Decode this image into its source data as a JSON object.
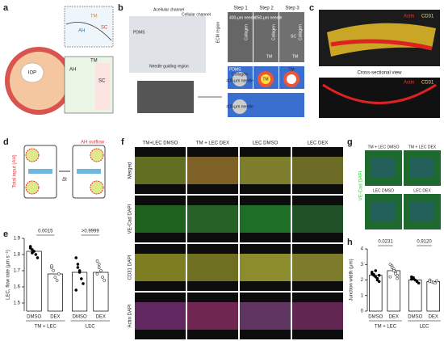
{
  "panels": {
    "a": {
      "letter": "a",
      "labels": [
        "IOP",
        "TM",
        "AH",
        "SC",
        "TM",
        "AH",
        "SC"
      ]
    },
    "b": {
      "letter": "b",
      "labels": [
        "Acellular channel",
        "Cellular channel",
        "PDMS",
        "Needle guiding region",
        "ECM region"
      ],
      "steps": [
        "Step 1",
        "Step 2",
        "Step 3"
      ],
      "step_texts": [
        "400-μm needle",
        "Collagen",
        "250-μm needle",
        "Collagen",
        "TM",
        "SC",
        "Collagen",
        "TM"
      ],
      "diagram_texts": [
        "PDMS",
        "Collagen",
        "400-μm needle",
        "TM",
        "TM",
        "400-μm needle"
      ]
    },
    "c": {
      "letter": "c",
      "labels": [
        "Actin",
        "CD31",
        "Cross-sectional view",
        "Actin",
        "CD31"
      ]
    },
    "d": {
      "letter": "d",
      "labels": [
        "Total input (AH)",
        "AH outflow",
        "Δt"
      ]
    },
    "f": {
      "letter": "f",
      "columns": [
        "TM+LEC DMSO",
        "TM + LEC DEX",
        "LEC DMSO",
        "LEC DEX"
      ],
      "rows": [
        "Merged",
        "VE-Cad DAPI",
        "CD31 DAPI",
        "Actin DAPI"
      ]
    },
    "g": {
      "letter": "g",
      "columns": [
        "TM + LEC DMSO",
        "TM + LEC DEX",
        "LEC DMSO",
        "LEC DEX"
      ],
      "side_label": "VE-Cad DAPI"
    },
    "e": {
      "letter": "e"
    },
    "h": {
      "letter": "h"
    }
  },
  "chart_data": [
    {
      "type": "bar",
      "ylabel": "LEC, flow rate (μm s⁻¹)",
      "categories": [
        "DMSO",
        "DEX",
        "DMSO",
        "DEX"
      ],
      "groups": [
        "TM + LEC",
        "LEC"
      ],
      "values": [
        1.82,
        1.68,
        1.69,
        1.69
      ],
      "points": [
        [
          1.85,
          1.83,
          1.82,
          1.8,
          1.78,
          1.84,
          1.81
        ],
        [
          1.72,
          1.7,
          1.66,
          1.64,
          1.68,
          1.73
        ],
        [
          1.78,
          1.74,
          1.7,
          1.65,
          1.62,
          1.58,
          1.72,
          1.69
        ],
        [
          1.76,
          1.74,
          1.7,
          1.66,
          1.64,
          1.68,
          1.72
        ]
      ],
      "ylim": [
        1.45,
        1.9
      ],
      "yticks": [
        1.5,
        1.6,
        1.7,
        1.8,
        1.9
      ],
      "pvalues": [
        "0.0015",
        ">0.9999"
      ]
    },
    {
      "type": "bar",
      "ylabel": "Junction width (μm)",
      "categories": [
        "DMSO",
        "DEX",
        "DMSO",
        "DEX"
      ],
      "groups": [
        "TM + LEC",
        "LEC"
      ],
      "values": [
        2.3,
        2.6,
        2.0,
        1.9
      ],
      "points": [
        [
          2.4,
          2.3,
          2.2,
          2.1,
          1.9,
          2.5,
          2.35,
          2.6,
          2.0,
          2.3
        ],
        [
          3.0,
          2.9,
          2.7,
          2.5,
          2.3,
          2.2,
          2.8,
          2.6,
          2.4,
          2.1
        ],
        [
          2.2,
          2.1,
          2.0,
          1.9,
          1.8,
          2.05,
          2.15
        ],
        [
          2.0,
          1.9,
          1.85,
          1.8,
          1.95,
          1.9
        ]
      ],
      "ylim": [
        0,
        4
      ],
      "yticks": [
        0,
        1,
        2,
        3,
        4
      ],
      "pvalues": [
        "0.0231",
        "0.9120"
      ]
    }
  ]
}
